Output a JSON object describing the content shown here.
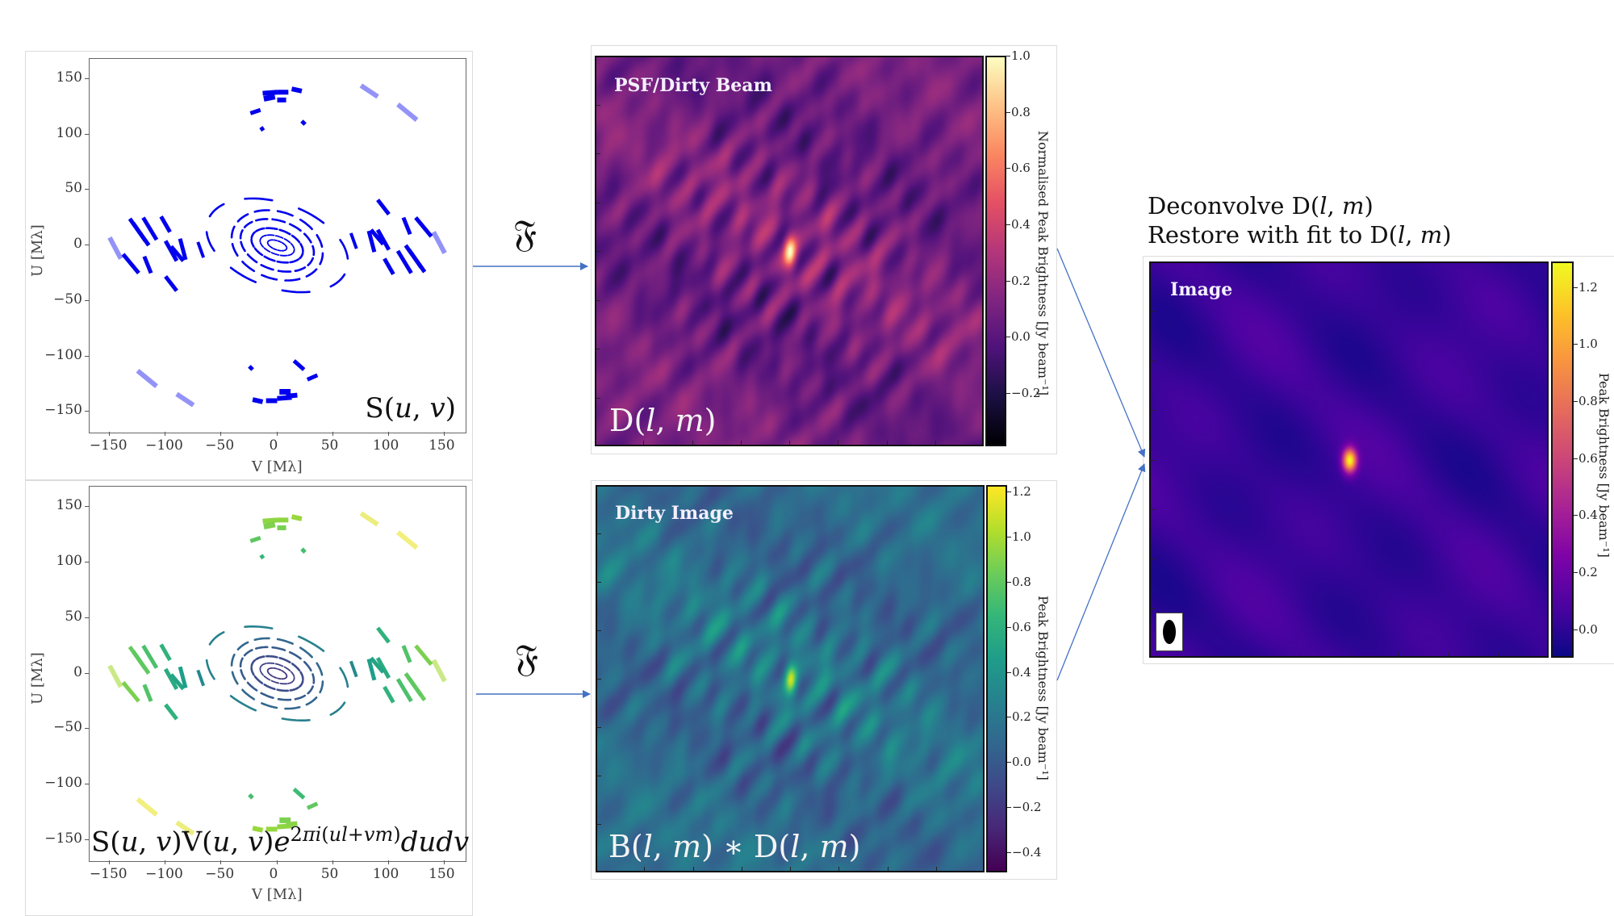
{
  "figure": {
    "fourier_symbol": "𝔉",
    "arrow_color": "#4472c4",
    "right_title_line1": "Deconvolve D(l, m)",
    "right_title_line2": "Restore with fit to D(l, m)"
  },
  "chart_data": [
    {
      "id": "uv_sampling",
      "type": "scatter",
      "title": "",
      "annotation": "S(u, v)",
      "xlabel": "V [Mλ]",
      "ylabel": "U [Mλ]",
      "xlim": [
        -168,
        168
      ],
      "ylim": [
        -168,
        168
      ],
      "xticks": [
        -150,
        -100,
        -50,
        0,
        50,
        100,
        150
      ],
      "yticks": [
        -150,
        -100,
        -50,
        0,
        50,
        100,
        150
      ],
      "xtick_labels": [
        "−150",
        "−100",
        "−50",
        "0",
        "50",
        "100",
        "150"
      ],
      "ytick_labels": [
        "−150",
        "−100",
        "−50",
        "0",
        "50",
        "100",
        "150"
      ],
      "color_mode": "single",
      "color": "#0000ee",
      "grid": false
    },
    {
      "id": "uv_visibilities",
      "type": "scatter",
      "title": "",
      "annotation": "S(u, v)V(u, v)e^{2πi(ul+vm)} dudv",
      "xlabel": "V [Mλ]",
      "ylabel": "U [Mλ]",
      "xlim": [
        -168,
        168
      ],
      "ylim": [
        -168,
        168
      ],
      "xticks": [
        -150,
        -100,
        -50,
        0,
        50,
        100,
        150
      ],
      "yticks": [
        -150,
        -100,
        -50,
        0,
        50,
        100,
        150
      ],
      "xtick_labels": [
        "−150",
        "−100",
        "−50",
        "0",
        "50",
        "100",
        "150"
      ],
      "ytick_labels": [
        "−150",
        "−100",
        "−50",
        "0",
        "50",
        "100",
        "150"
      ],
      "color_mode": "viridis_by_radius",
      "grid": false
    },
    {
      "id": "psf",
      "type": "heatmap",
      "title": "PSF/Dirty Beam",
      "annotation": "D(l, m)",
      "colormap": "magma",
      "colorbar_label": "Normalised Peak Brightness [Jy beam⁻¹]",
      "clim": [
        -0.39,
        1.0
      ],
      "cticks": [
        -0.2,
        0.0,
        0.2,
        0.4,
        0.6,
        0.8,
        1.0
      ],
      "ctick_labels": [
        "−0.2",
        "0.0",
        "0.2",
        "0.4",
        "0.6",
        "0.8",
        "1.0"
      ],
      "peak": {
        "value": 1.0,
        "position": "center"
      }
    },
    {
      "id": "dirty_image",
      "type": "heatmap",
      "title": "Dirty Image",
      "annotation": "B(l, m) ∗ D(l, m)",
      "colormap": "viridis",
      "colorbar_label": "Peak Brightness [Jy beam⁻¹]",
      "clim": [
        -0.49,
        1.23
      ],
      "cticks": [
        -0.4,
        -0.2,
        0.0,
        0.2,
        0.4,
        0.6,
        0.8,
        1.0,
        1.2
      ],
      "ctick_labels": [
        "−0.4",
        "−0.2",
        "0.0",
        "0.2",
        "0.4",
        "0.6",
        "0.8",
        "1.0",
        "1.2"
      ],
      "peak": {
        "value": 1.2,
        "position": "center"
      }
    },
    {
      "id": "clean_image",
      "type": "heatmap",
      "title": "Image",
      "annotation": "",
      "colormap": "plasma",
      "colorbar_label": "Peak Brightness [Jy beam⁻¹]",
      "clim": [
        -0.1,
        1.29
      ],
      "cticks": [
        0.0,
        0.2,
        0.4,
        0.6,
        0.8,
        1.0,
        1.2
      ],
      "ctick_labels": [
        "0.0",
        "0.2",
        "0.4",
        "0.6",
        "0.8",
        "1.0",
        "1.2"
      ],
      "peak": {
        "value": 1.25,
        "position": "center"
      },
      "background_level": 0.02,
      "has_beam_ellipse": true
    }
  ],
  "uv_tracks": [
    {
      "cu": 0,
      "cv": 0,
      "ru": 4,
      "rv": 9,
      "segs": 14,
      "len": 0.22,
      "alpha": 1
    },
    {
      "cu": 0,
      "cv": 0,
      "ru": 8,
      "rv": 16,
      "segs": 12,
      "len": 0.25,
      "alpha": 1
    },
    {
      "cu": 0,
      "cv": 0,
      "ru": 14,
      "rv": 24,
      "segs": 12,
      "len": 0.25,
      "alpha": 1
    },
    {
      "cu": 0,
      "cv": 0,
      "ru": 22,
      "rv": 34,
      "segs": 13,
      "len": 0.22,
      "alpha": 1
    },
    {
      "cu": 0,
      "cv": 0,
      "ru": 30,
      "rv": 42,
      "segs": 12,
      "len": 0.2,
      "alpha": 1
    },
    {
      "cu": 0,
      "cv": 0,
      "ru": 38,
      "rv": 66,
      "segs": 8,
      "len": 0.16,
      "alpha": 1
    }
  ],
  "uv_outer_segments": [
    {
      "v1": -24,
      "u1": 119,
      "v2": -15,
      "u2": 122,
      "w": 4
    },
    {
      "v1": -15,
      "u1": 104,
      "v2": -12,
      "u2": 106,
      "w": 4
    },
    {
      "v1": 22,
      "u1": 112,
      "v2": 25,
      "u2": 109,
      "w": 4
    },
    {
      "v1": -13,
      "u1": 137,
      "v2": 0,
      "u2": 138,
      "w": 5
    },
    {
      "v1": 0,
      "u1": 138,
      "v2": 10,
      "u2": 138,
      "w": 5
    },
    {
      "v1": 13,
      "u1": 141,
      "v2": 22,
      "u2": 139,
      "w": 5
    },
    {
      "v1": -12,
      "u1": 132,
      "v2": -2,
      "u2": 134,
      "w": 6
    },
    {
      "v1": 0,
      "u1": 131,
      "v2": 8,
      "u2": 131,
      "w": 5
    },
    {
      "v1": 75,
      "u1": 144,
      "v2": 90,
      "u2": 134,
      "w": 5,
      "faint": true
    },
    {
      "v1": 108,
      "u1": 127,
      "v2": 125,
      "u2": 113,
      "w": 5,
      "faint": true
    },
    {
      "v1": 24,
      "u1": -112,
      "v2": 15,
      "u2": -104,
      "w": 4
    },
    {
      "v1": -22,
      "u1": -112,
      "v2": -25,
      "u2": -109,
      "w": 4
    },
    {
      "v1": 36,
      "u1": -117,
      "v2": 27,
      "u2": -121,
      "w": 4
    },
    {
      "v1": 13,
      "u1": -137,
      "v2": 0,
      "u2": -138,
      "w": 5
    },
    {
      "v1": 0,
      "u1": -140,
      "v2": -10,
      "u2": -140,
      "w": 5
    },
    {
      "v1": -13,
      "u1": -141,
      "v2": -22,
      "u2": -139,
      "w": 5
    },
    {
      "v1": 12,
      "u1": -132,
      "v2": 2,
      "u2": -132,
      "w": 6
    },
    {
      "v1": 18,
      "u1": -135,
      "v2": 8,
      "u2": -136,
      "w": 5
    },
    {
      "v1": -75,
      "u1": -144,
      "v2": -90,
      "u2": -134,
      "w": 5,
      "faint": true
    },
    {
      "v1": -108,
      "u1": -127,
      "v2": -125,
      "u2": -113,
      "w": 5,
      "faint": true
    },
    {
      "v1": -150,
      "u1": 7,
      "v2": -140,
      "u2": -12,
      "w": 5,
      "faint": true
    },
    {
      "v1": -132,
      "u1": 24,
      "v2": -118,
      "u2": 4,
      "w": 4
    },
    {
      "v1": -129,
      "u1": 20,
      "v2": -115,
      "u2": 0,
      "w": 4
    },
    {
      "v1": -120,
      "u1": 25,
      "v2": -108,
      "u2": 5,
      "w": 4
    },
    {
      "v1": -104,
      "u1": 26,
      "v2": -96,
      "u2": 12,
      "w": 4
    },
    {
      "v1": -138,
      "u1": -8,
      "v2": -124,
      "u2": -25,
      "w": 4
    },
    {
      "v1": -119,
      "u1": -10,
      "v2": -113,
      "u2": -25,
      "w": 4
    },
    {
      "v1": -100,
      "u1": -28,
      "v2": -90,
      "u2": -41,
      "w": 4
    },
    {
      "v1": -100,
      "u1": 4,
      "v2": -90,
      "u2": -14,
      "w": 4
    },
    {
      "v1": -95,
      "u1": -1,
      "v2": -84,
      "u2": -14,
      "w": 4
    },
    {
      "v1": -87,
      "u1": 6,
      "v2": -82,
      "u2": -13,
      "w": 4
    },
    {
      "v1": -71,
      "u1": 3,
      "v2": -66,
      "u2": -11,
      "w": 3
    },
    {
      "v1": 150,
      "u1": -7,
      "v2": 140,
      "u2": 12,
      "w": 5,
      "faint": true
    },
    {
      "v1": 132,
      "u1": -24,
      "v2": 118,
      "u2": -4,
      "w": 4
    },
    {
      "v1": 129,
      "u1": -20,
      "v2": 115,
      "u2": 0,
      "w": 4
    },
    {
      "v1": 120,
      "u1": -25,
      "v2": 108,
      "u2": -5,
      "w": 4
    },
    {
      "v1": 104,
      "u1": -26,
      "v2": 96,
      "u2": -12,
      "w": 4
    },
    {
      "v1": 138,
      "u1": 8,
      "v2": 124,
      "u2": 25,
      "w": 4
    },
    {
      "v1": 119,
      "u1": 10,
      "v2": 113,
      "u2": 25,
      "w": 4
    },
    {
      "v1": 100,
      "u1": 28,
      "v2": 90,
      "u2": 41,
      "w": 4
    },
    {
      "v1": 100,
      "u1": -4,
      "v2": 90,
      "u2": 14,
      "w": 4
    },
    {
      "v1": 95,
      "u1": 1,
      "v2": 84,
      "u2": 14,
      "w": 4
    },
    {
      "v1": 87,
      "u1": -6,
      "v2": 82,
      "u2": 13,
      "w": 4
    },
    {
      "v1": 71,
      "u1": -3,
      "v2": 66,
      "u2": 11,
      "w": 3
    }
  ]
}
